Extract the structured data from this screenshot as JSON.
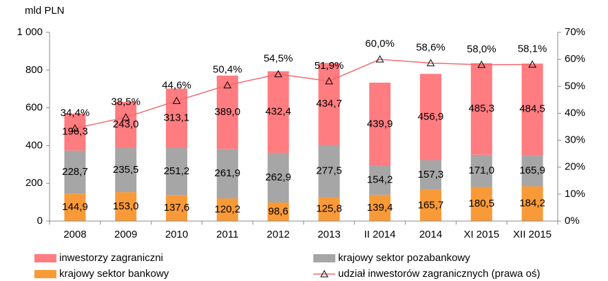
{
  "chart_data": {
    "type": "bar",
    "stacked": true,
    "y_axis_label": "mld PLN",
    "categories": [
      "2008",
      "2009",
      "2010",
      "2011",
      "2012",
      "2013",
      "II 2014",
      "2014",
      "XI 2015",
      "XII 2015"
    ],
    "series": [
      {
        "name": "krajowy sektor bankowy",
        "color": "#f99a38",
        "values": [
          144.9,
          153.0,
          137.6,
          120.2,
          98.6,
          125.8,
          139.4,
          165.7,
          180.5,
          184.2
        ],
        "value_labels": [
          "144,9",
          "153,0",
          "137,6",
          "120,2",
          "98,6",
          "125,8",
          "139,4",
          "165,7",
          "180,5",
          "184,2"
        ]
      },
      {
        "name": "krajowy sektor pozabankowy",
        "color": "#a6a6a6",
        "values": [
          228.7,
          235.5,
          251.2,
          261.9,
          262.9,
          277.5,
          154.2,
          157.3,
          171.0,
          165.9
        ],
        "value_labels": [
          "228,7",
          "235,5",
          "251,2",
          "261,9",
          "262,9",
          "277,5",
          "154,2",
          "157,3",
          "171,0",
          "165,9"
        ]
      },
      {
        "name": "inwestorzy zagraniczni",
        "color": "#ff7c80",
        "values": [
          196.3,
          243.0,
          313.1,
          389.0,
          432.4,
          434.7,
          439.9,
          456.9,
          485.3,
          484.5
        ],
        "value_labels": [
          "196,3",
          "243,0",
          "313,1",
          "389,0",
          "432,4",
          "434,7",
          "439,9",
          "456,9",
          "485,3",
          "484,5"
        ]
      },
      {
        "name": "udział inwestorów zagranicznych (prawa oś)",
        "type": "line",
        "axis": "y2",
        "color": "#f26a6e",
        "values": [
          34.4,
          38.5,
          44.6,
          50.4,
          54.5,
          51.9,
          60.0,
          58.6,
          58.0,
          58.1
        ],
        "value_labels": [
          "34,4%",
          "38,5%",
          "44,6%",
          "50,4%",
          "54,5%",
          "51,9%",
          "60,0%",
          "58,6%",
          "58,0%",
          "58,1%"
        ]
      }
    ],
    "ylim": [
      0,
      1000
    ],
    "yticks": [
      0,
      200,
      400,
      600,
      800,
      {
        "value": 1000,
        "label": "1 000"
      }
    ],
    "y2lim": [
      0,
      70
    ],
    "y2ticks": [
      {
        "value": 0,
        "label": "0%"
      },
      {
        "value": 10,
        "label": "10%"
      },
      {
        "value": 20,
        "label": "20%"
      },
      {
        "value": 30,
        "label": "30%"
      },
      {
        "value": 40,
        "label": "40%"
      },
      {
        "value": 50,
        "label": "50%"
      },
      {
        "value": 60,
        "label": "60%"
      },
      {
        "value": 70,
        "label": "70%"
      }
    ]
  }
}
